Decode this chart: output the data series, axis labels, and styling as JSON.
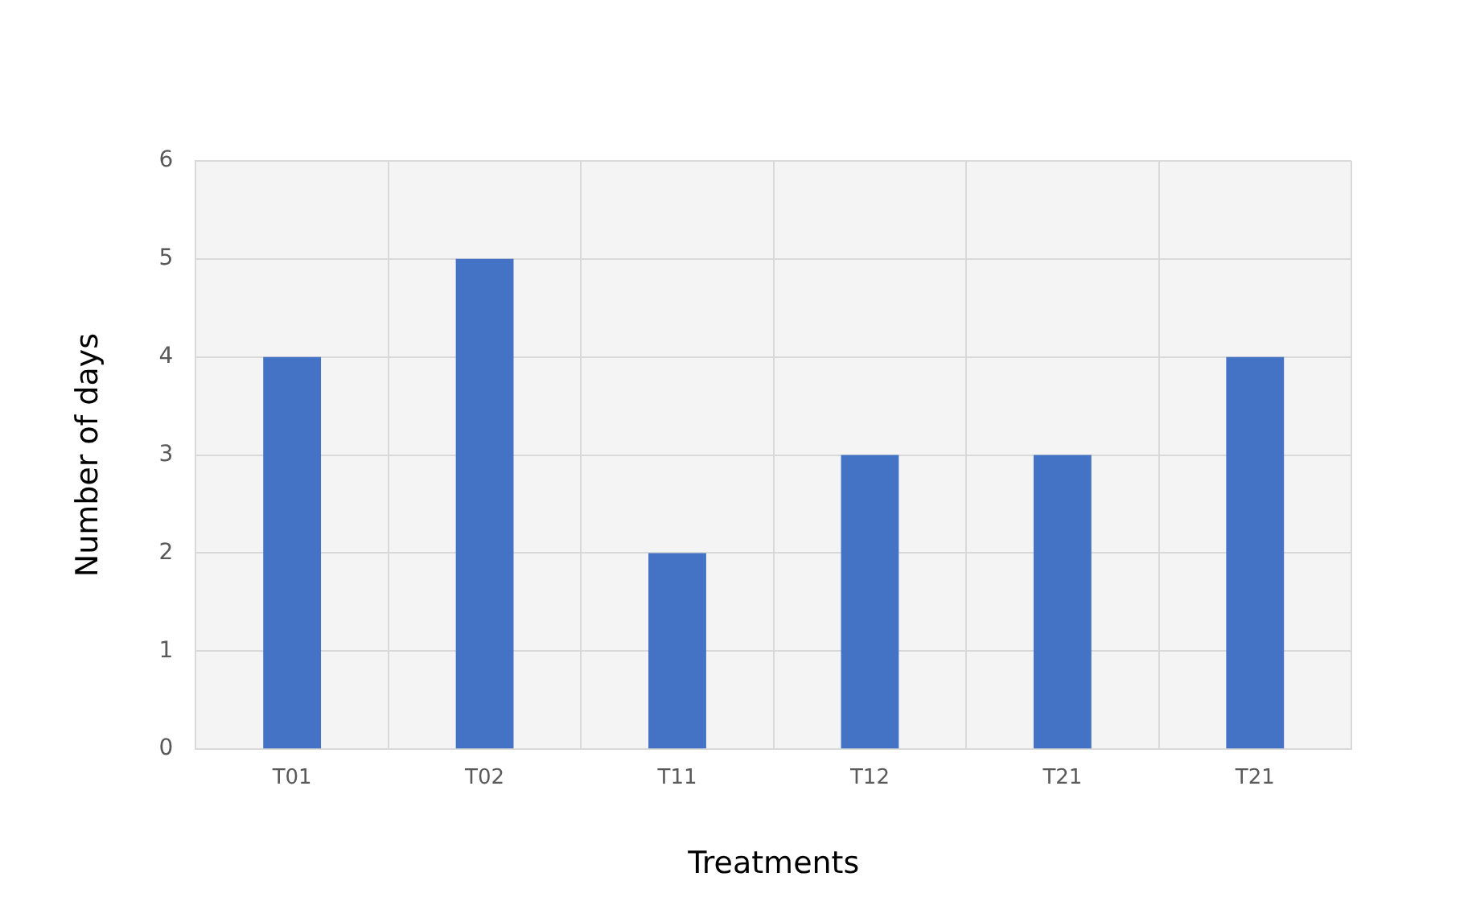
{
  "chart_data": {
    "type": "bar",
    "xlabel": "Treatments",
    "ylabel": "Number of days",
    "categories": [
      "T01",
      "T02",
      "T11",
      "T12",
      "T21",
      "T21"
    ],
    "values": [
      4,
      5,
      2,
      3,
      3,
      4
    ],
    "color": "#4472c4",
    "ylim": [
      0,
      6
    ],
    "yticks": [
      0,
      1,
      2,
      3,
      4,
      5,
      6
    ],
    "grid": true
  }
}
